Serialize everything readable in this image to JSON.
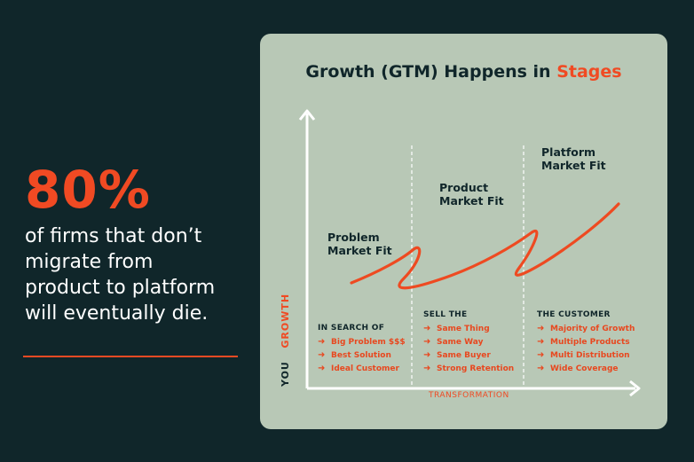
{
  "stat": {
    "value": "80%",
    "lines": [
      "of firms that don’t",
      "migrate from",
      "product to platform",
      "will eventually die."
    ]
  },
  "card": {
    "title_main": "Growth (GTM) Happens in",
    "title_highlight": "Stages",
    "stages": [
      {
        "label_lines": [
          "Problem",
          "Market Fit"
        ]
      },
      {
        "label_lines": [
          "Product",
          "Market Fit"
        ]
      },
      {
        "label_lines": [
          "Platform",
          "Market Fit"
        ]
      }
    ],
    "columns": [
      {
        "heading": "IN SEARCH OF",
        "items": [
          "Big Problem $$$",
          "Best Solution",
          "Ideal Customer"
        ]
      },
      {
        "heading": "SELL THE",
        "items": [
          "Same Thing",
          "Same Way",
          "Same Buyer",
          "Strong Retention"
        ]
      },
      {
        "heading": "THE CUSTOMER",
        "items": [
          "Majority of Growth",
          "Multiple Products",
          "Multi Distribution",
          "Wide Coverage"
        ]
      }
    ],
    "x_axis_label": "TRANSFORMATION",
    "y_axis_label_you": "YOU",
    "y_axis_label_growth": "GROWTH"
  },
  "colors": {
    "background": "#10262a",
    "accent": "#f04a23",
    "card": "#b8c8b6"
  },
  "icons": [
    "arrow-right-icon"
  ]
}
